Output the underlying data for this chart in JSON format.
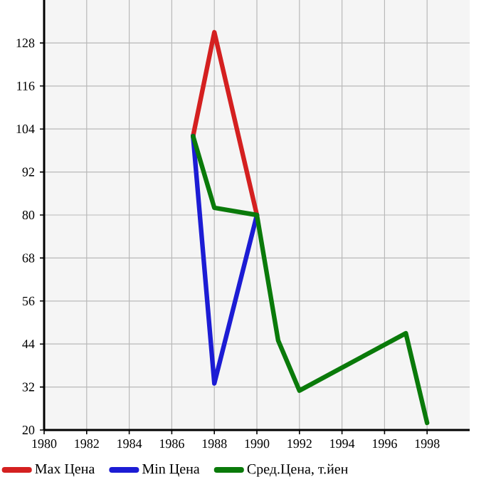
{
  "chart_data": {
    "type": "line",
    "x": [
      1987,
      1988,
      1990
    ],
    "series": [
      {
        "name": "Max Цена",
        "color": "#d42020",
        "values": [
          102,
          131,
          80
        ]
      },
      {
        "name": "Min Цена",
        "color": "#1c1cd4",
        "values": [
          102,
          33,
          80
        ]
      },
      {
        "name": "Сред.Цена, т.йен",
        "color": "#0a7a0a",
        "x": [
          1987,
          1988,
          1990,
          1991,
          1992,
          1997,
          1998
        ],
        "values": [
          102,
          82,
          80,
          45,
          31,
          47,
          22
        ]
      }
    ],
    "xlim": [
      1980,
      2000
    ],
    "xticks": [
      1980,
      1982,
      1984,
      1986,
      1988,
      1990,
      1992,
      1994,
      1996,
      1998
    ],
    "ylim": [
      20,
      140
    ],
    "yticks": [
      20,
      32,
      44,
      56,
      68,
      80,
      92,
      104,
      116,
      128
    ],
    "grid": true,
    "legend": "bottom",
    "marker": "none",
    "line_style": "solid"
  }
}
